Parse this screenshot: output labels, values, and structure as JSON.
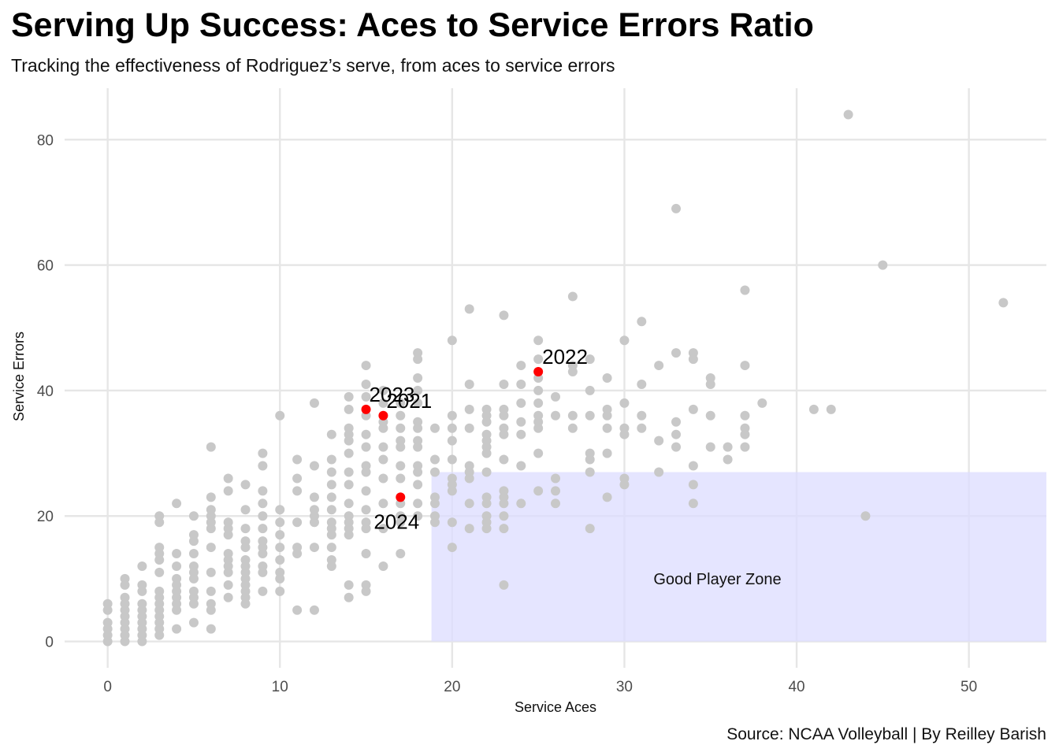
{
  "title": "Serving Up Success: Aces to Service Errors Ratio",
  "subtitle": "Tracking the effectiveness of Rodriguez’s serve, from aces to service errors",
  "caption": "Source: NCAA Volleyball | By Reilley Barish",
  "chart_data": {
    "type": "scatter",
    "xlabel": "Service Aces",
    "ylabel": "Service Errors",
    "xlim": [
      -2.5,
      54.5
    ],
    "ylim": [
      -4.2,
      88.2
    ],
    "xticks": [
      0,
      10,
      20,
      30,
      40,
      50
    ],
    "yticks": [
      0,
      20,
      40,
      60,
      80
    ],
    "grid": true,
    "colors": {
      "other": "#c8c8c8",
      "highlight": "#ff0000",
      "zone": "#dcdcff"
    },
    "zone": {
      "label": "Good Player Zone",
      "x_min": 18.8,
      "x_max": 54.5,
      "y_min": 0,
      "y_max": 27
    },
    "highlights": [
      {
        "label": "2023",
        "x": 15,
        "y": 37
      },
      {
        "label": "2021",
        "x": 16,
        "y": 36
      },
      {
        "label": "2022",
        "x": 25,
        "y": 43
      },
      {
        "label": "2024",
        "x": 17,
        "y": 23
      }
    ],
    "points": [
      [
        0,
        0
      ],
      [
        0,
        1
      ],
      [
        0,
        2
      ],
      [
        0,
        3
      ],
      [
        0,
        5
      ],
      [
        0,
        6
      ],
      [
        1,
        0
      ],
      [
        1,
        1
      ],
      [
        1,
        2
      ],
      [
        1,
        3
      ],
      [
        1,
        4
      ],
      [
        1,
        5
      ],
      [
        1,
        6
      ],
      [
        1,
        7
      ],
      [
        1,
        9
      ],
      [
        1,
        10
      ],
      [
        2,
        0
      ],
      [
        2,
        1
      ],
      [
        2,
        2
      ],
      [
        2,
        3
      ],
      [
        2,
        4
      ],
      [
        2,
        5
      ],
      [
        2,
        6
      ],
      [
        2,
        8
      ],
      [
        2,
        9
      ],
      [
        2,
        12
      ],
      [
        3,
        1
      ],
      [
        3,
        2
      ],
      [
        3,
        3
      ],
      [
        3,
        4
      ],
      [
        3,
        5
      ],
      [
        3,
        6
      ],
      [
        3,
        7
      ],
      [
        3,
        8
      ],
      [
        3,
        11
      ],
      [
        3,
        13
      ],
      [
        3,
        14
      ],
      [
        3,
        15
      ],
      [
        3,
        19
      ],
      [
        3,
        20
      ],
      [
        4,
        2
      ],
      [
        4,
        5
      ],
      [
        4,
        6
      ],
      [
        4,
        7
      ],
      [
        4,
        8
      ],
      [
        4,
        9
      ],
      [
        4,
        10
      ],
      [
        4,
        12
      ],
      [
        4,
        14
      ],
      [
        4,
        22
      ],
      [
        5,
        3
      ],
      [
        5,
        6
      ],
      [
        5,
        7
      ],
      [
        5,
        8
      ],
      [
        5,
        10
      ],
      [
        5,
        11
      ],
      [
        5,
        12
      ],
      [
        5,
        14
      ],
      [
        5,
        16
      ],
      [
        5,
        17
      ],
      [
        5,
        20
      ],
      [
        6,
        2
      ],
      [
        6,
        5
      ],
      [
        6,
        6
      ],
      [
        6,
        8
      ],
      [
        6,
        11
      ],
      [
        6,
        15
      ],
      [
        6,
        18
      ],
      [
        6,
        19
      ],
      [
        6,
        20
      ],
      [
        6,
        21
      ],
      [
        6,
        23
      ],
      [
        6,
        31
      ],
      [
        7,
        7
      ],
      [
        7,
        9
      ],
      [
        7,
        11
      ],
      [
        7,
        12
      ],
      [
        7,
        13
      ],
      [
        7,
        14
      ],
      [
        7,
        17
      ],
      [
        7,
        18
      ],
      [
        7,
        19
      ],
      [
        7,
        24
      ],
      [
        7,
        26
      ],
      [
        8,
        6
      ],
      [
        8,
        7
      ],
      [
        8,
        8
      ],
      [
        8,
        9
      ],
      [
        8,
        10
      ],
      [
        8,
        11
      ],
      [
        8,
        12
      ],
      [
        8,
        13
      ],
      [
        8,
        15
      ],
      [
        8,
        16
      ],
      [
        8,
        18
      ],
      [
        8,
        21
      ],
      [
        8,
        25
      ],
      [
        9,
        8
      ],
      [
        9,
        11
      ],
      [
        9,
        12
      ],
      [
        9,
        14
      ],
      [
        9,
        15
      ],
      [
        9,
        16
      ],
      [
        9,
        18
      ],
      [
        9,
        20
      ],
      [
        9,
        22
      ],
      [
        9,
        24
      ],
      [
        9,
        28
      ],
      [
        9,
        30
      ],
      [
        10,
        8
      ],
      [
        10,
        10
      ],
      [
        10,
        11
      ],
      [
        10,
        13
      ],
      [
        10,
        15
      ],
      [
        10,
        17
      ],
      [
        10,
        19
      ],
      [
        10,
        21
      ],
      [
        10,
        36
      ],
      [
        11,
        5
      ],
      [
        11,
        14
      ],
      [
        11,
        15
      ],
      [
        11,
        19
      ],
      [
        11,
        24
      ],
      [
        11,
        26
      ],
      [
        11,
        29
      ],
      [
        12,
        5
      ],
      [
        12,
        15
      ],
      [
        12,
        19
      ],
      [
        12,
        20
      ],
      [
        12,
        21
      ],
      [
        12,
        23
      ],
      [
        12,
        28
      ],
      [
        12,
        38
      ],
      [
        13,
        12
      ],
      [
        13,
        13
      ],
      [
        13,
        15
      ],
      [
        13,
        17
      ],
      [
        13,
        18
      ],
      [
        13,
        19
      ],
      [
        13,
        21
      ],
      [
        13,
        23
      ],
      [
        13,
        25
      ],
      [
        13,
        27
      ],
      [
        13,
        29
      ],
      [
        13,
        33
      ],
      [
        14,
        7
      ],
      [
        14,
        9
      ],
      [
        14,
        17
      ],
      [
        14,
        18
      ],
      [
        14,
        19
      ],
      [
        14,
        20
      ],
      [
        14,
        22
      ],
      [
        14,
        25
      ],
      [
        14,
        27
      ],
      [
        14,
        30
      ],
      [
        14,
        32
      ],
      [
        14,
        33
      ],
      [
        14,
        34
      ],
      [
        14,
        37
      ],
      [
        14,
        39
      ],
      [
        15,
        8
      ],
      [
        15,
        9
      ],
      [
        15,
        14
      ],
      [
        15,
        18
      ],
      [
        15,
        19
      ],
      [
        15,
        21
      ],
      [
        15,
        24
      ],
      [
        15,
        27
      ],
      [
        15,
        28
      ],
      [
        15,
        31
      ],
      [
        15,
        33
      ],
      [
        15,
        36
      ],
      [
        15,
        39
      ],
      [
        15,
        41
      ],
      [
        15,
        44
      ],
      [
        16,
        12
      ],
      [
        16,
        18
      ],
      [
        16,
        22
      ],
      [
        16,
        26
      ],
      [
        16,
        29
      ],
      [
        16,
        31
      ],
      [
        16,
        34
      ],
      [
        16,
        35
      ],
      [
        16,
        38
      ],
      [
        16,
        40
      ],
      [
        17,
        14
      ],
      [
        17,
        19
      ],
      [
        17,
        20
      ],
      [
        17,
        22
      ],
      [
        17,
        26
      ],
      [
        17,
        28
      ],
      [
        17,
        31
      ],
      [
        17,
        32
      ],
      [
        17,
        34
      ],
      [
        17,
        36
      ],
      [
        17,
        38
      ],
      [
        18,
        20
      ],
      [
        18,
        22
      ],
      [
        18,
        25
      ],
      [
        18,
        27
      ],
      [
        18,
        28
      ],
      [
        18,
        31
      ],
      [
        18,
        32
      ],
      [
        18,
        34
      ],
      [
        18,
        35
      ],
      [
        18,
        38
      ],
      [
        18,
        40
      ],
      [
        18,
        42
      ],
      [
        18,
        45
      ],
      [
        18,
        46
      ],
      [
        19,
        19
      ],
      [
        19,
        20
      ],
      [
        19,
        22
      ],
      [
        19,
        23
      ],
      [
        19,
        27
      ],
      [
        19,
        29
      ],
      [
        19,
        34
      ],
      [
        20,
        15
      ],
      [
        20,
        19
      ],
      [
        20,
        24
      ],
      [
        20,
        25
      ],
      [
        20,
        26
      ],
      [
        20,
        29
      ],
      [
        20,
        32
      ],
      [
        20,
        34
      ],
      [
        20,
        36
      ],
      [
        20,
        48
      ],
      [
        21,
        18
      ],
      [
        21,
        22
      ],
      [
        21,
        26
      ],
      [
        21,
        27
      ],
      [
        21,
        28
      ],
      [
        21,
        34
      ],
      [
        21,
        37
      ],
      [
        21,
        41
      ],
      [
        21,
        53
      ],
      [
        22,
        18
      ],
      [
        22,
        19
      ],
      [
        22,
        20
      ],
      [
        22,
        22
      ],
      [
        22,
        23
      ],
      [
        22,
        27
      ],
      [
        22,
        30
      ],
      [
        22,
        31
      ],
      [
        22,
        32
      ],
      [
        22,
        33
      ],
      [
        22,
        35
      ],
      [
        22,
        36
      ],
      [
        22,
        37
      ],
      [
        23,
        9
      ],
      [
        23,
        18
      ],
      [
        23,
        20
      ],
      [
        23,
        22
      ],
      [
        23,
        23
      ],
      [
        23,
        24
      ],
      [
        23,
        29
      ],
      [
        23,
        33
      ],
      [
        23,
        34
      ],
      [
        23,
        36
      ],
      [
        23,
        37
      ],
      [
        23,
        41
      ],
      [
        23,
        52
      ],
      [
        24,
        22
      ],
      [
        24,
        28
      ],
      [
        24,
        33
      ],
      [
        24,
        35
      ],
      [
        24,
        38
      ],
      [
        24,
        41
      ],
      [
        24,
        44
      ],
      [
        25,
        24
      ],
      [
        25,
        30
      ],
      [
        25,
        34
      ],
      [
        25,
        35
      ],
      [
        25,
        36
      ],
      [
        25,
        38
      ],
      [
        25,
        40
      ],
      [
        25,
        42
      ],
      [
        25,
        45
      ],
      [
        25,
        48
      ],
      [
        26,
        22
      ],
      [
        26,
        24
      ],
      [
        26,
        26
      ],
      [
        26,
        36
      ],
      [
        26,
        39
      ],
      [
        27,
        34
      ],
      [
        27,
        36
      ],
      [
        27,
        43
      ],
      [
        27,
        44
      ],
      [
        27,
        55
      ],
      [
        28,
        18
      ],
      [
        28,
        27
      ],
      [
        28,
        29
      ],
      [
        28,
        30
      ],
      [
        28,
        36
      ],
      [
        28,
        40
      ],
      [
        28,
        45
      ],
      [
        29,
        23
      ],
      [
        29,
        30
      ],
      [
        29,
        34
      ],
      [
        29,
        36
      ],
      [
        29,
        37
      ],
      [
        29,
        42
      ],
      [
        30,
        25
      ],
      [
        30,
        26
      ],
      [
        30,
        33
      ],
      [
        30,
        34
      ],
      [
        30,
        38
      ],
      [
        30,
        48
      ],
      [
        31,
        34
      ],
      [
        31,
        36
      ],
      [
        31,
        41
      ],
      [
        31,
        51
      ],
      [
        32,
        27
      ],
      [
        32,
        32
      ],
      [
        32,
        44
      ],
      [
        33,
        31
      ],
      [
        33,
        33
      ],
      [
        33,
        35
      ],
      [
        33,
        46
      ],
      [
        33,
        69
      ],
      [
        34,
        22
      ],
      [
        34,
        25
      ],
      [
        34,
        28
      ],
      [
        34,
        37
      ],
      [
        34,
        45
      ],
      [
        34,
        46
      ],
      [
        35,
        31
      ],
      [
        35,
        36
      ],
      [
        35,
        41
      ],
      [
        35,
        42
      ],
      [
        36,
        29
      ],
      [
        36,
        31
      ],
      [
        37,
        31
      ],
      [
        37,
        33
      ],
      [
        37,
        34
      ],
      [
        37,
        36
      ],
      [
        37,
        44
      ],
      [
        37,
        56
      ],
      [
        38,
        38
      ],
      [
        41,
        37
      ],
      [
        42,
        37
      ],
      [
        43,
        84
      ],
      [
        44,
        20
      ],
      [
        45,
        60
      ],
      [
        52,
        54
      ]
    ]
  }
}
